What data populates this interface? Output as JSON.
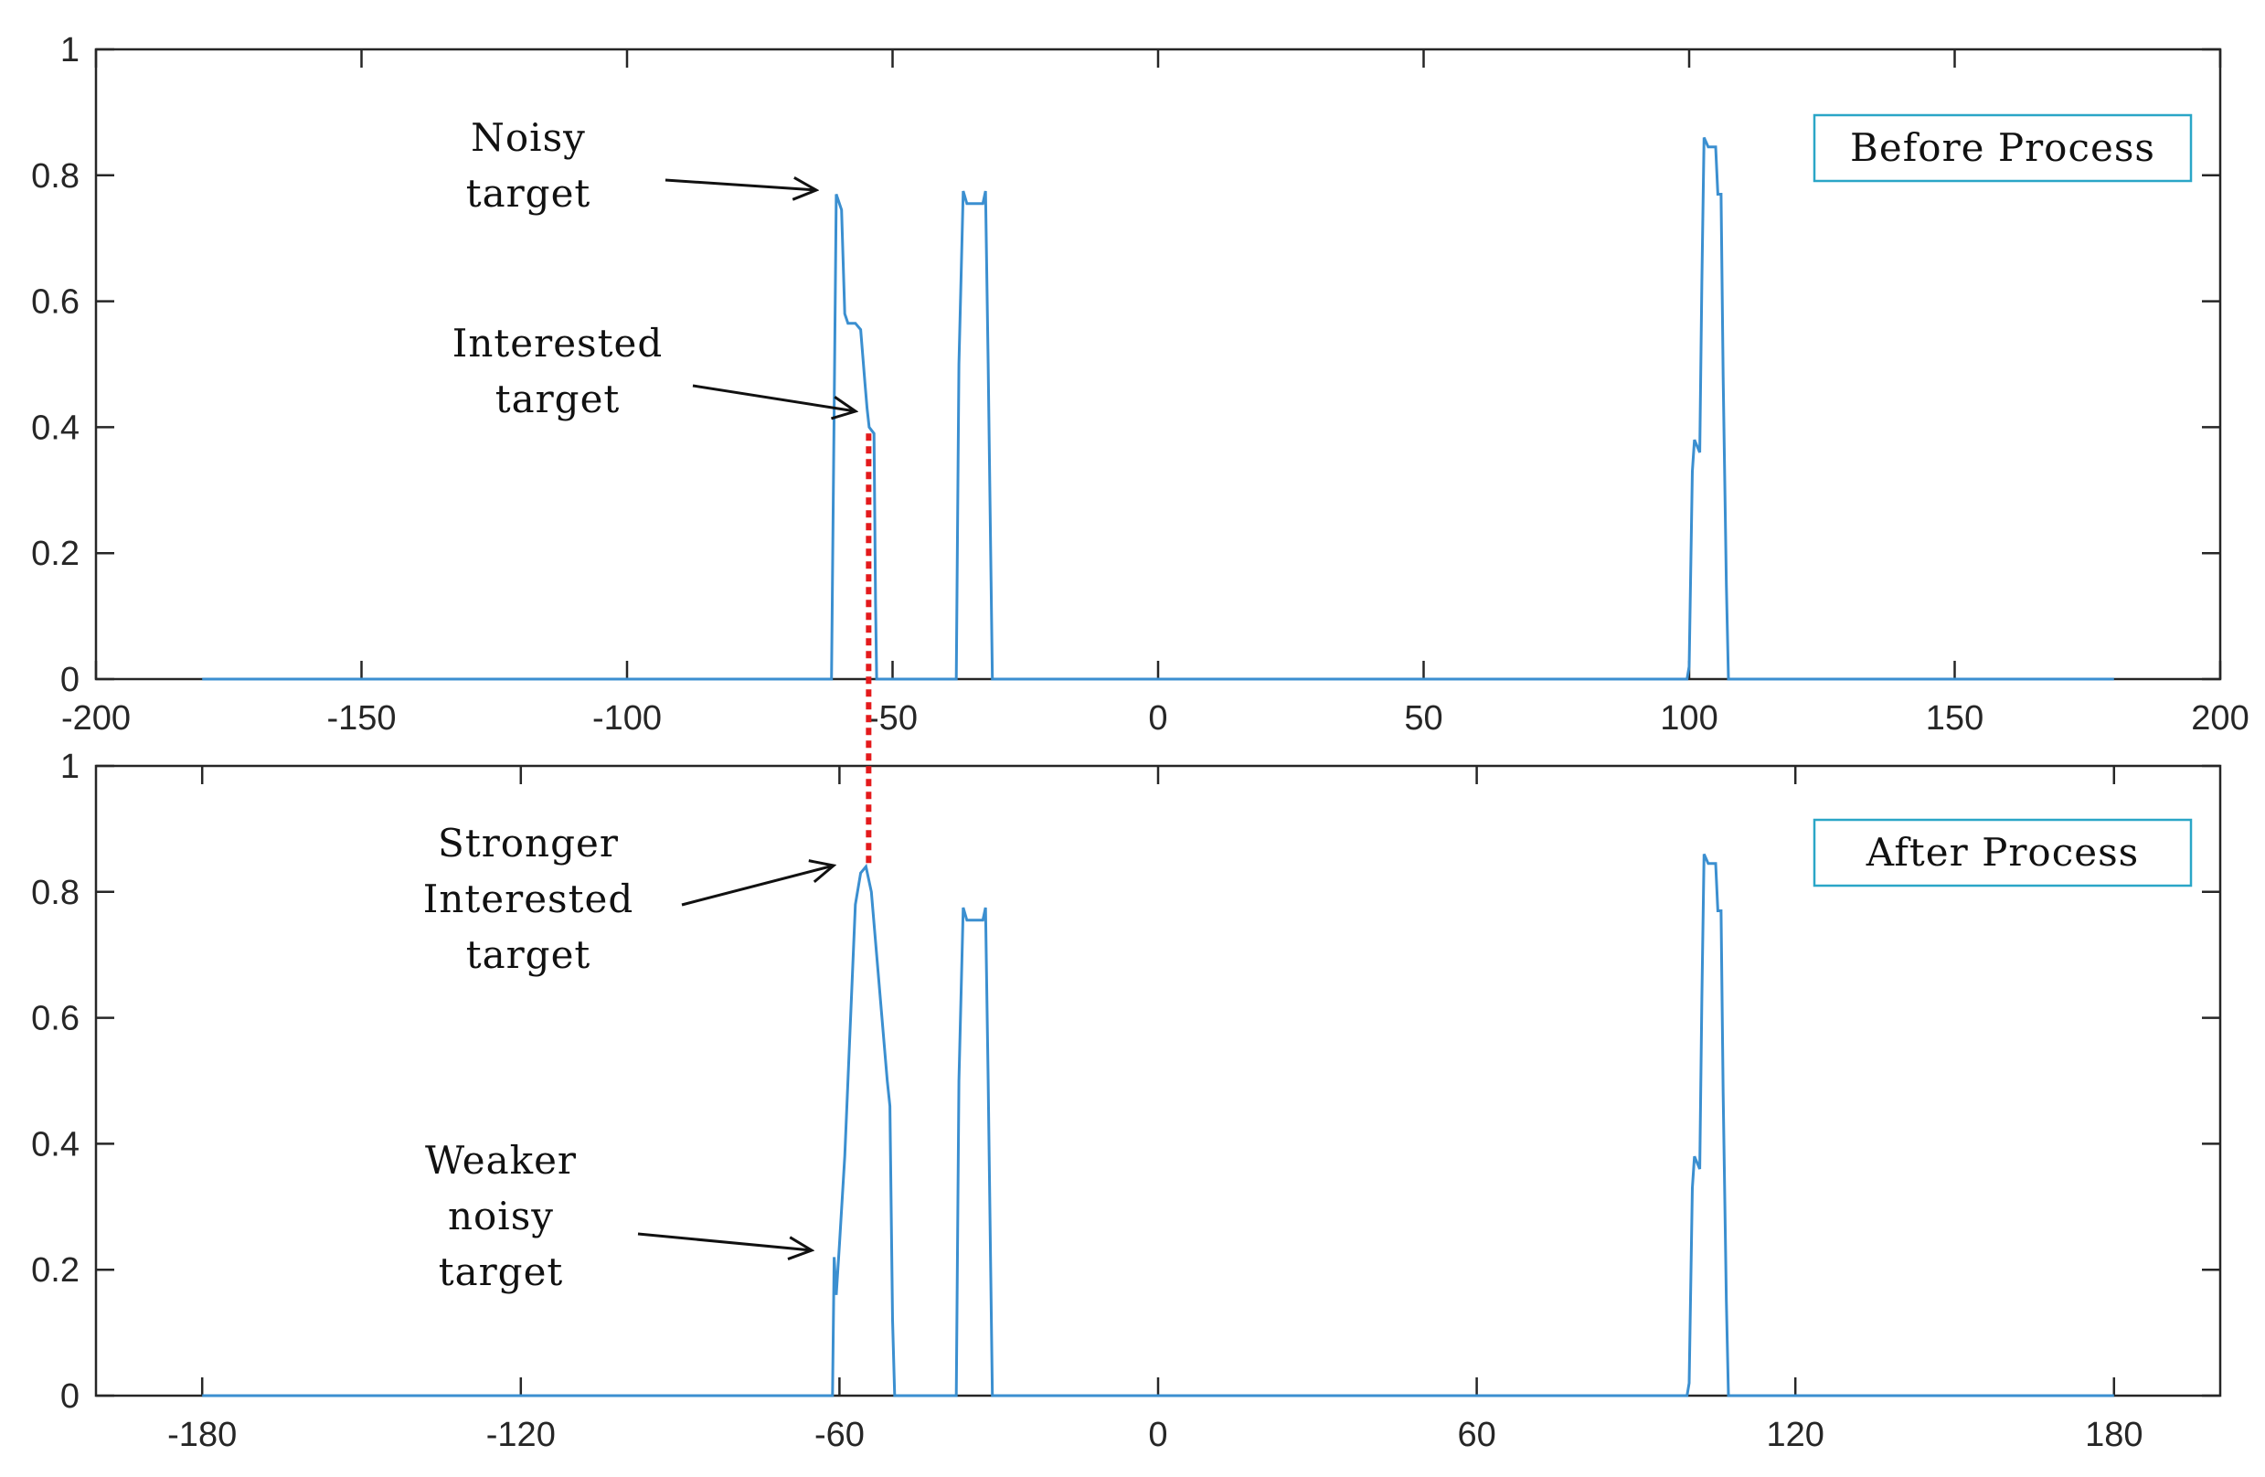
{
  "chart_data": [
    {
      "type": "line",
      "title": "",
      "xlabel": "",
      "ylabel": "",
      "xlim": [
        -200,
        200
      ],
      "ylim": [
        0,
        1
      ],
      "xticks": [
        "-200",
        "-150",
        "-100",
        "-50",
        "0",
        "50",
        "100",
        "150",
        "200"
      ],
      "yticks": [
        "0",
        "0.2",
        "0.4",
        "0.6",
        "0.8",
        "1"
      ],
      "legend": "Before Process",
      "legend_position": "top-right",
      "color": "#3b8fd0",
      "series": [
        {
          "x": [
            -180,
            -61.5,
            -60.6,
            -60,
            -59.6,
            -59,
            -58.4,
            -57.8,
            -57,
            -56,
            -55.2,
            -54.8,
            -54.4,
            -53.5,
            -53.2,
            -53,
            -38,
            -37.5,
            -36.7,
            -36,
            -35,
            -34,
            -33,
            -32.5,
            -32,
            -31.2,
            99.6,
            100,
            100.6,
            101,
            101.5,
            102,
            102.4,
            102.8,
            103.6,
            104,
            105,
            105.4,
            106,
            106.4,
            107,
            107.4,
            180
          ],
          "y": [
            0,
            0,
            0.77,
            0.755,
            0.745,
            0.58,
            0.565,
            0.565,
            0.565,
            0.555,
            0.47,
            0.43,
            0.4,
            0.39,
            0.12,
            0,
            0,
            0.5,
            0.775,
            0.755,
            0.755,
            0.755,
            0.755,
            0.775,
            0.5,
            0,
            0,
            0.02,
            0.33,
            0.38,
            0.37,
            0.36,
            0.63,
            0.86,
            0.845,
            0.845,
            0.845,
            0.77,
            0.77,
            0.48,
            0.15,
            0,
            0
          ]
        }
      ],
      "annotations": [
        {
          "lines": [
            "Noisy",
            "target"
          ]
        },
        {
          "lines": [
            "Interested",
            "target"
          ]
        }
      ]
    },
    {
      "type": "line",
      "title": "",
      "xlabel": "",
      "ylabel": "",
      "xlim": [
        -200,
        200
      ],
      "ylim": [
        0,
        1
      ],
      "xticks": [
        "-180",
        "-120",
        "-60",
        "0",
        "60",
        "120",
        "180"
      ],
      "yticks": [
        "0",
        "0.2",
        "0.4",
        "0.6",
        "0.8",
        "1"
      ],
      "legend": "After Process",
      "legend_position": "top-right",
      "color": "#3b8fd0",
      "series": [
        {
          "x": [
            -180,
            -61.3,
            -61,
            -60.6,
            -60,
            -59,
            -58,
            -57,
            -56,
            -55,
            -54,
            -53,
            -52,
            -51,
            -50.5,
            -50,
            -49.6,
            -38,
            -37.5,
            -36.7,
            -36,
            -35,
            -34,
            -33,
            -32.5,
            -32,
            -31.2,
            99.6,
            100,
            100.6,
            101,
            101.5,
            102,
            102.4,
            102.8,
            103.6,
            104,
            105,
            105.4,
            106,
            106.4,
            107,
            107.4,
            180
          ],
          "y": [
            0,
            0,
            0.22,
            0.16,
            0.24,
            0.38,
            0.58,
            0.78,
            0.83,
            0.84,
            0.8,
            0.7,
            0.6,
            0.5,
            0.46,
            0.12,
            0,
            0,
            0.5,
            0.775,
            0.755,
            0.755,
            0.755,
            0.755,
            0.775,
            0.5,
            0,
            0,
            0.02,
            0.33,
            0.38,
            0.37,
            0.36,
            0.63,
            0.86,
            0.845,
            0.845,
            0.845,
            0.77,
            0.77,
            0.48,
            0.15,
            0,
            0
          ]
        }
      ],
      "annotations": [
        {
          "lines": [
            "Stronger",
            "Interested",
            "target"
          ]
        },
        {
          "lines": [
            "Weaker",
            "noisy",
            "target"
          ]
        }
      ]
    }
  ],
  "guide_line": {
    "color": "#e41a1c",
    "x": -54.5,
    "from_y_top_panel": 0.39,
    "to_y_bottom_panel": 0.84
  }
}
